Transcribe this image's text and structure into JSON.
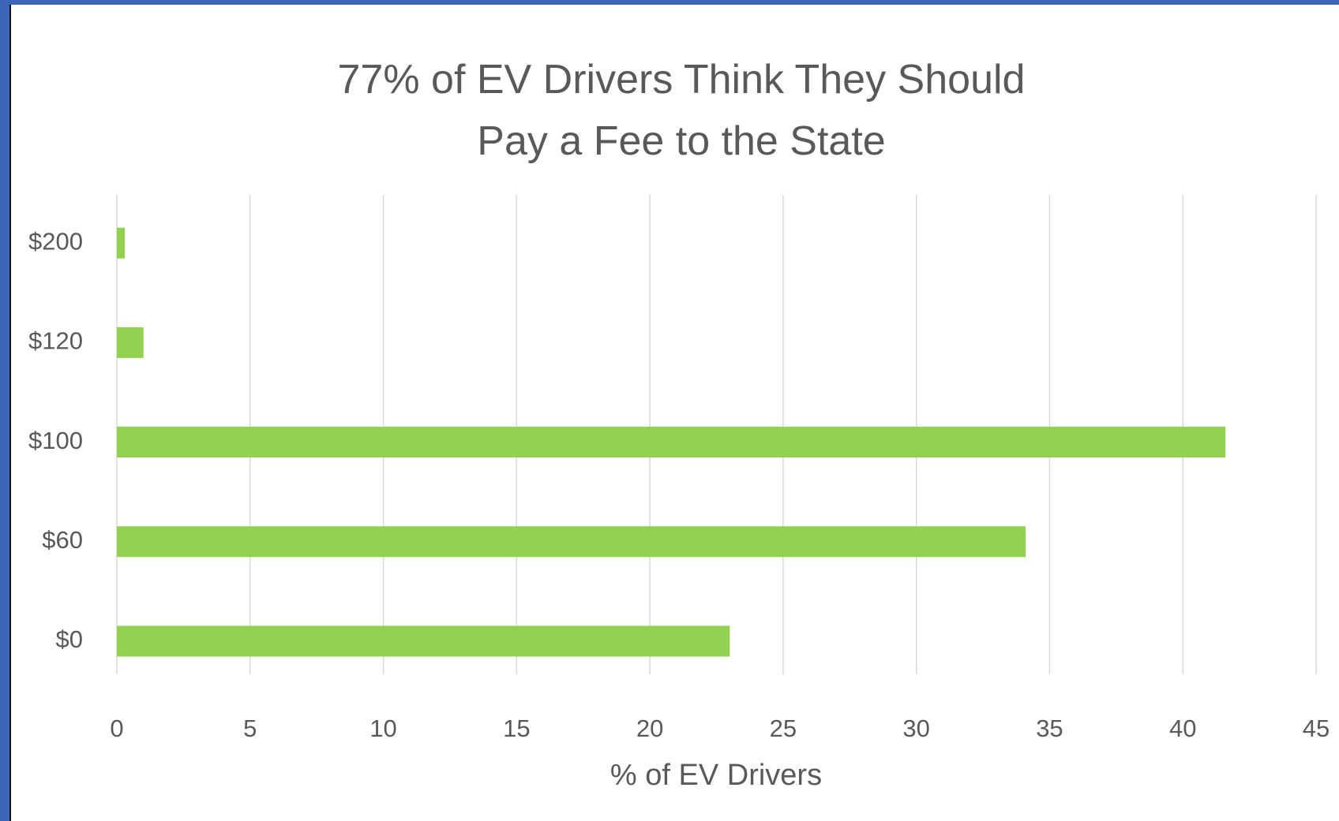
{
  "chart_data": {
    "type": "bar",
    "orientation": "horizontal",
    "title": "77% of EV Drivers Think They Should\nPay a Fee to the State",
    "xlabel": "% of EV Drivers",
    "categories": [
      "$0",
      "$60",
      "$100",
      "$120",
      "$200"
    ],
    "values": [
      23,
      34.1,
      41.6,
      1,
      0.3
    ],
    "color": "#92d050",
    "xlim": [
      0,
      45
    ],
    "xticks": [
      0,
      5,
      10,
      15,
      20,
      25,
      30,
      35,
      40,
      45
    ],
    "grid": true
  }
}
